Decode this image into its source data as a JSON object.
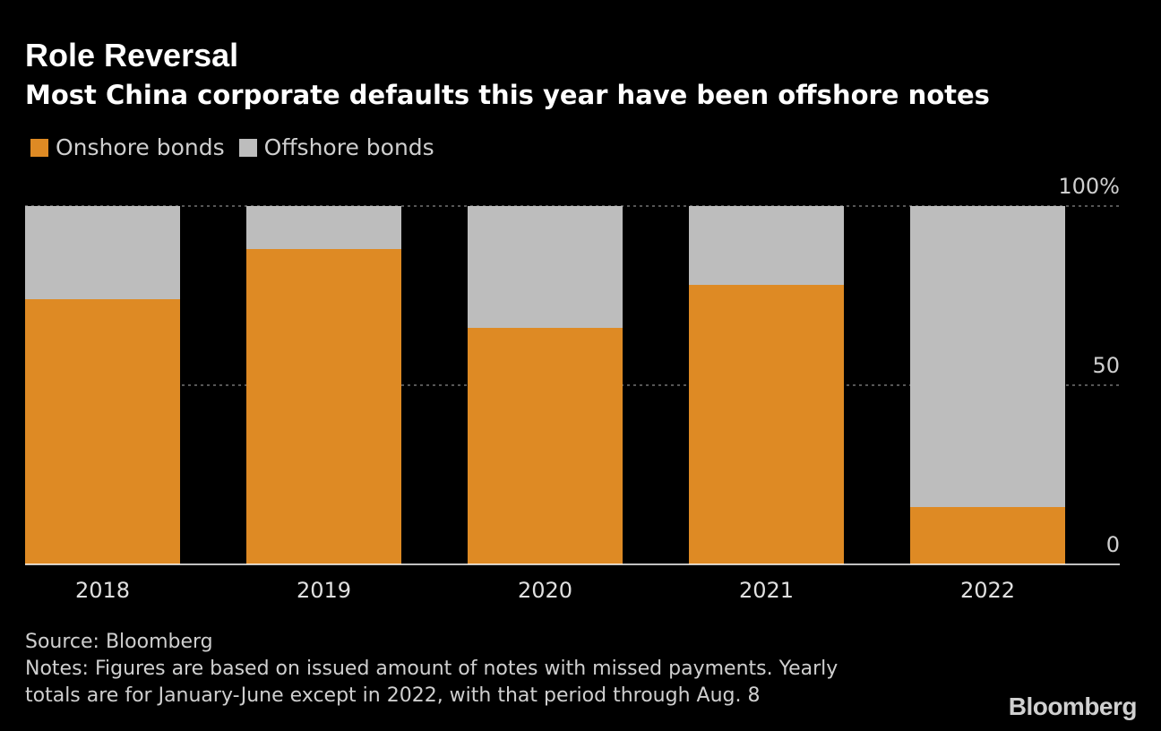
{
  "header": {
    "title": "Role Reversal",
    "subtitle": "Most China corporate defaults this year have been offshore notes"
  },
  "legend": {
    "items": [
      {
        "label": "Onshore bonds",
        "color": "#de8a24"
      },
      {
        "label": "Offshore bonds",
        "color": "#bdbdbd"
      }
    ]
  },
  "chart_data": {
    "type": "bar",
    "stacked": true,
    "categories": [
      "2018",
      "2019",
      "2020",
      "2021",
      "2022"
    ],
    "series": [
      {
        "name": "Onshore bonds",
        "color": "#de8a24",
        "values": [
          74,
          88,
          66,
          78,
          16
        ]
      },
      {
        "name": "Offshore bonds",
        "color": "#bdbdbd",
        "values": [
          26,
          12,
          34,
          22,
          84
        ]
      }
    ],
    "ylim": [
      0,
      100
    ],
    "y_ticks": [
      0,
      50,
      100
    ],
    "y_tick_labels": [
      "0",
      "50",
      "100%"
    ],
    "y_axis_position": "right",
    "grid": true,
    "title": "Role Reversal",
    "xlabel": "",
    "ylabel": ""
  },
  "footer": {
    "source": "Source: Bloomberg",
    "notes_line1": "Notes: Figures are based on issued amount of notes with missed payments. Yearly",
    "notes_line2": "totals are for January-June except in 2022, with that period through Aug. 8"
  },
  "branding": {
    "logo_text": "Bloomberg"
  }
}
